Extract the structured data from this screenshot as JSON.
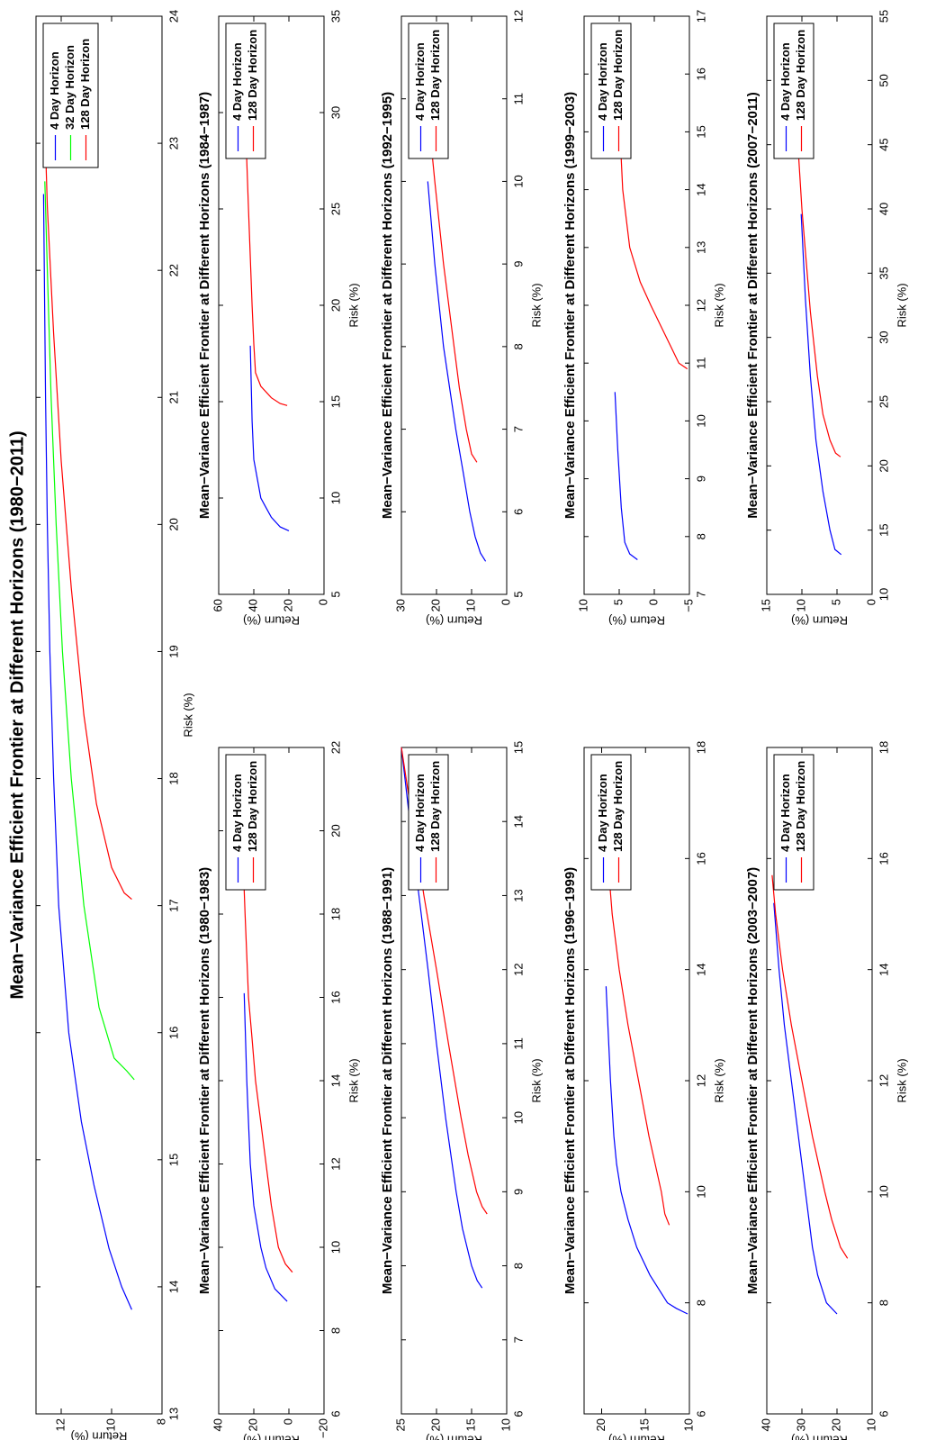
{
  "chart_data": [
    {
      "type": "line",
      "title": "Mean−Variance Efficient Frontier at Different Horizons (1980−2011)",
      "x_label": "Risk (%)",
      "y_label": "Return (%)",
      "xlim": [
        13,
        24
      ],
      "xticks": [
        13,
        14,
        15,
        16,
        17,
        18,
        19,
        20,
        21,
        22,
        23,
        24
      ],
      "ylim": [
        8,
        13
      ],
      "yticks": [
        8,
        10,
        12
      ],
      "legend": "upper right",
      "series": [
        {
          "name": "4 Day Horizon",
          "color": "#0000ff",
          "x": [
            13.82,
            14.0,
            14.3,
            14.8,
            15.3,
            16.0,
            17,
            18,
            19,
            20,
            21,
            22.6
          ],
          "values": [
            9.2,
            9.6,
            10.1,
            10.7,
            11.2,
            11.7,
            12.1,
            12.3,
            12.45,
            12.55,
            12.62,
            12.7
          ]
        },
        {
          "name": "32 Day Horizon",
          "color": "#00ff00",
          "x": [
            15.63,
            15.7,
            15.8,
            16.2,
            17,
            18,
            19,
            20,
            21,
            22,
            22.7
          ],
          "values": [
            9.1,
            9.4,
            9.9,
            10.5,
            11.1,
            11.6,
            11.95,
            12.2,
            12.4,
            12.55,
            12.65
          ]
        },
        {
          "name": "128 Day Horizon",
          "color": "#ff0000",
          "x": [
            17.05,
            17.1,
            17.3,
            17.8,
            18.5,
            19.5,
            20.5,
            21.5,
            22.5,
            23.15
          ],
          "values": [
            9.2,
            9.5,
            10.0,
            10.6,
            11.1,
            11.6,
            12,
            12.3,
            12.55,
            12.65
          ]
        }
      ]
    },
    {
      "type": "line",
      "title": "Mean−Variance Efficient Frontier at Different Horizons (1980−1983)",
      "x_label": "Risk (%)",
      "y_label": "Return (%)",
      "xlim": [
        6,
        22
      ],
      "xticks": [
        6,
        8,
        10,
        12,
        14,
        16,
        18,
        20,
        22
      ],
      "ylim": [
        -20,
        40
      ],
      "yticks": [
        {
          "value": -20,
          "label": "−20"
        },
        0,
        20,
        40
      ],
      "legend": "upper right",
      "series": [
        {
          "name": "4 Day Horizon",
          "color": "#0000ff",
          "x": [
            8.7,
            9,
            9.5,
            10,
            11,
            12,
            13,
            14,
            16.1
          ],
          "values": [
            1,
            8,
            13,
            16,
            20,
            22,
            23,
            24,
            25.5
          ]
        },
        {
          "name": "128 Day Horizon",
          "color": "#ff0000",
          "x": [
            9.4,
            9.6,
            10,
            11,
            12,
            13,
            14,
            15,
            16,
            18,
            20.3
          ],
          "values": [
            -2,
            2,
            6,
            10,
            13,
            16,
            19,
            21,
            23,
            25,
            27
          ]
        }
      ]
    },
    {
      "type": "line",
      "title": "Mean−Variance Efficient Frontier at Different Horizons (1984−1987)",
      "x_label": "Risk (%)",
      "y_label": "Return (%)",
      "xlim": [
        5,
        35
      ],
      "xticks": [
        5,
        10,
        15,
        20,
        25,
        30,
        35
      ],
      "ylim": [
        0,
        60
      ],
      "yticks": [
        0,
        20,
        40,
        60
      ],
      "legend": "upper right",
      "series": [
        {
          "name": "4 Day Horizon",
          "color": "#0000ff",
          "x": [
            8.3,
            8.5,
            9,
            9.5,
            10,
            11,
            12,
            14,
            17.9
          ],
          "values": [
            20,
            25,
            30,
            33,
            36,
            38,
            40,
            41,
            42
          ]
        },
        {
          "name": "128 Day Horizon",
          "color": "#ff0000",
          "x": [
            14.8,
            14.9,
            15.2,
            15.8,
            16.5,
            18,
            20,
            25,
            30,
            33.9
          ],
          "values": [
            21,
            25,
            30,
            36,
            39,
            40,
            41,
            43,
            45,
            46
          ]
        }
      ]
    },
    {
      "type": "line",
      "title": "Mean−Variance Efficient Frontier at Different Horizons (1988−1991)",
      "x_label": "Risk (%)",
      "y_label": "Return (%)",
      "xlim": [
        6,
        15
      ],
      "xticks": [
        6,
        7,
        8,
        9,
        10,
        11,
        12,
        13,
        14,
        15
      ],
      "ylim": [
        10,
        25
      ],
      "yticks": [
        10,
        15,
        20,
        25
      ],
      "legend": "upper right",
      "series": [
        {
          "name": "4 Day Horizon",
          "color": "#0000ff",
          "x": [
            7.7,
            7.8,
            8,
            8.5,
            9,
            10,
            11,
            12,
            13,
            14,
            15
          ],
          "values": [
            13.5,
            14.2,
            15,
            16.3,
            17.2,
            18.7,
            20,
            21.2,
            22.5,
            23.8,
            25
          ]
        },
        {
          "name": "128 Day Horizon",
          "color": "#ff0000",
          "x": [
            8.7,
            8.8,
            9,
            9.5,
            10,
            11,
            12,
            13,
            14,
            15
          ],
          "values": [
            12.8,
            13.5,
            14.3,
            15.5,
            16.5,
            18.3,
            20,
            21.8,
            23.4,
            25
          ]
        }
      ]
    },
    {
      "type": "line",
      "title": "Mean−Variance Efficient Frontier at Different Horizons (1992−1995)",
      "x_label": "Risk (%)",
      "y_label": "Return (%)",
      "xlim": [
        5,
        12
      ],
      "xticks": [
        5,
        6,
        7,
        8,
        9,
        10,
        11,
        12
      ],
      "ylim": [
        0,
        30
      ],
      "yticks": [
        0,
        10,
        20,
        30
      ],
      "legend": "upper right",
      "series": [
        {
          "name": "4 Day Horizon",
          "color": "#0000ff",
          "x": [
            5.4,
            5.5,
            5.7,
            6,
            6.5,
            7,
            8,
            9,
            10
          ],
          "values": [
            6,
            7.5,
            9,
            10.5,
            12.5,
            14.5,
            18,
            20.5,
            22.5
          ]
        },
        {
          "name": "128 Day Horizon",
          "color": "#ff0000",
          "x": [
            6.6,
            6.7,
            7,
            7.5,
            8,
            9,
            10,
            11.1
          ],
          "values": [
            8.5,
            10,
            11.5,
            13.5,
            15,
            18,
            20.5,
            23
          ]
        }
      ]
    },
    {
      "type": "line",
      "title": "Mean−Variance Efficient Frontier at Different Horizons (1996−1999)",
      "x_label": "Risk (%)",
      "y_label": "Return (%)",
      "xlim": [
        6,
        18
      ],
      "xticks": [
        6,
        8,
        10,
        12,
        14,
        16,
        18
      ],
      "ylim": [
        10,
        22
      ],
      "yticks": [
        10,
        15,
        20
      ],
      "legend": "upper right",
      "series": [
        {
          "name": "4 Day Horizon",
          "color": "#0000ff",
          "x": [
            7.8,
            7.9,
            8,
            8.5,
            9,
            9.5,
            10,
            10.5,
            11,
            12,
            13.7
          ],
          "values": [
            10.2,
            11.5,
            12.5,
            14.5,
            16,
            17,
            17.8,
            18.3,
            18.6,
            19,
            19.5
          ]
        },
        {
          "name": "128 Day Horizon",
          "color": "#ff0000",
          "x": [
            9.4,
            9.6,
            10,
            11,
            12,
            13,
            14,
            15,
            16,
            17.6
          ],
          "values": [
            12.3,
            12.8,
            13.2,
            14.6,
            15.8,
            17,
            18,
            18.8,
            19.3,
            19.7
          ]
        }
      ]
    },
    {
      "type": "line",
      "title": "Mean−Variance Efficient Frontier at Different Horizons (1999−2003)",
      "x_label": "Risk (%)",
      "y_label": "Return (%)",
      "xlim": [
        7,
        17
      ],
      "xticks": [
        7,
        8,
        9,
        10,
        11,
        12,
        13,
        14,
        15,
        16,
        17
      ],
      "ylim": [
        -5,
        10
      ],
      "yticks": [
        {
          "value": -5,
          "label": "−5"
        },
        0,
        5,
        10
      ],
      "legend": "upper right",
      "series": [
        {
          "name": "4 Day Horizon",
          "color": "#0000ff",
          "x": [
            7.6,
            7.7,
            7.9,
            8.5,
            9.5,
            10.5
          ],
          "values": [
            2.4,
            3.5,
            4.2,
            4.7,
            5.2,
            5.6
          ]
        },
        {
          "name": "128 Day Horizon",
          "color": "#ff0000",
          "x": [
            10.9,
            11,
            11.5,
            12,
            12.4,
            13,
            14,
            15,
            16.2
          ],
          "values": [
            -4.7,
            -3.5,
            -1.5,
            0.5,
            2,
            3.5,
            4.5,
            4.9,
            5.2
          ]
        }
      ]
    },
    {
      "type": "line",
      "title": "Mean−Variance Efficient Frontier at Different Horizons (2003−2007)",
      "x_label": "Risk (%)",
      "y_label": "Return (%)",
      "xlim": [
        6,
        18
      ],
      "xticks": [
        6,
        8,
        10,
        12,
        14,
        16,
        18
      ],
      "ylim": [
        10,
        40
      ],
      "yticks": [
        10,
        20,
        30,
        40
      ],
      "legend": "upper right",
      "series": [
        {
          "name": "4 Day Horizon",
          "color": "#0000ff",
          "x": [
            7.8,
            8,
            8.5,
            9,
            10,
            11,
            12,
            13,
            14,
            15.2
          ],
          "values": [
            20,
            23,
            25.5,
            27,
            29,
            31,
            33,
            35,
            36.5,
            38
          ]
        },
        {
          "name": "128 Day Horizon",
          "color": "#ff0000",
          "x": [
            8.8,
            9,
            9.5,
            10,
            11,
            12,
            13,
            14,
            15,
            15.7
          ],
          "values": [
            17,
            19,
            21.5,
            23.5,
            27,
            30,
            33,
            35.5,
            37.5,
            38.5
          ]
        }
      ]
    },
    {
      "type": "line",
      "title": "Mean−Variance Efficient Frontier at Different Horizons (2007−2011)",
      "x_label": "Risk (%)",
      "y_label": "Return (%)",
      "xlim": [
        10,
        55
      ],
      "xticks": [
        10,
        15,
        20,
        25,
        30,
        35,
        40,
        45,
        50,
        55
      ],
      "ylim": [
        0,
        15
      ],
      "yticks": [
        0,
        5,
        10,
        15
      ],
      "legend": "upper right",
      "series": [
        {
          "name": "4 Day Horizon",
          "color": "#0000ff",
          "x": [
            13.1,
            13.5,
            15,
            18,
            22,
            27,
            33,
            39.6
          ],
          "values": [
            4.4,
            5.3,
            6,
            7,
            8,
            8.8,
            9.5,
            10.1
          ]
        },
        {
          "name": "128 Day Horizon",
          "color": "#ff0000",
          "x": [
            20.7,
            21,
            22,
            24,
            27,
            32,
            40,
            47,
            53.7
          ],
          "values": [
            4.5,
            5.2,
            6,
            7,
            7.8,
            8.8,
            10,
            10.8,
            11.4
          ]
        }
      ]
    }
  ]
}
